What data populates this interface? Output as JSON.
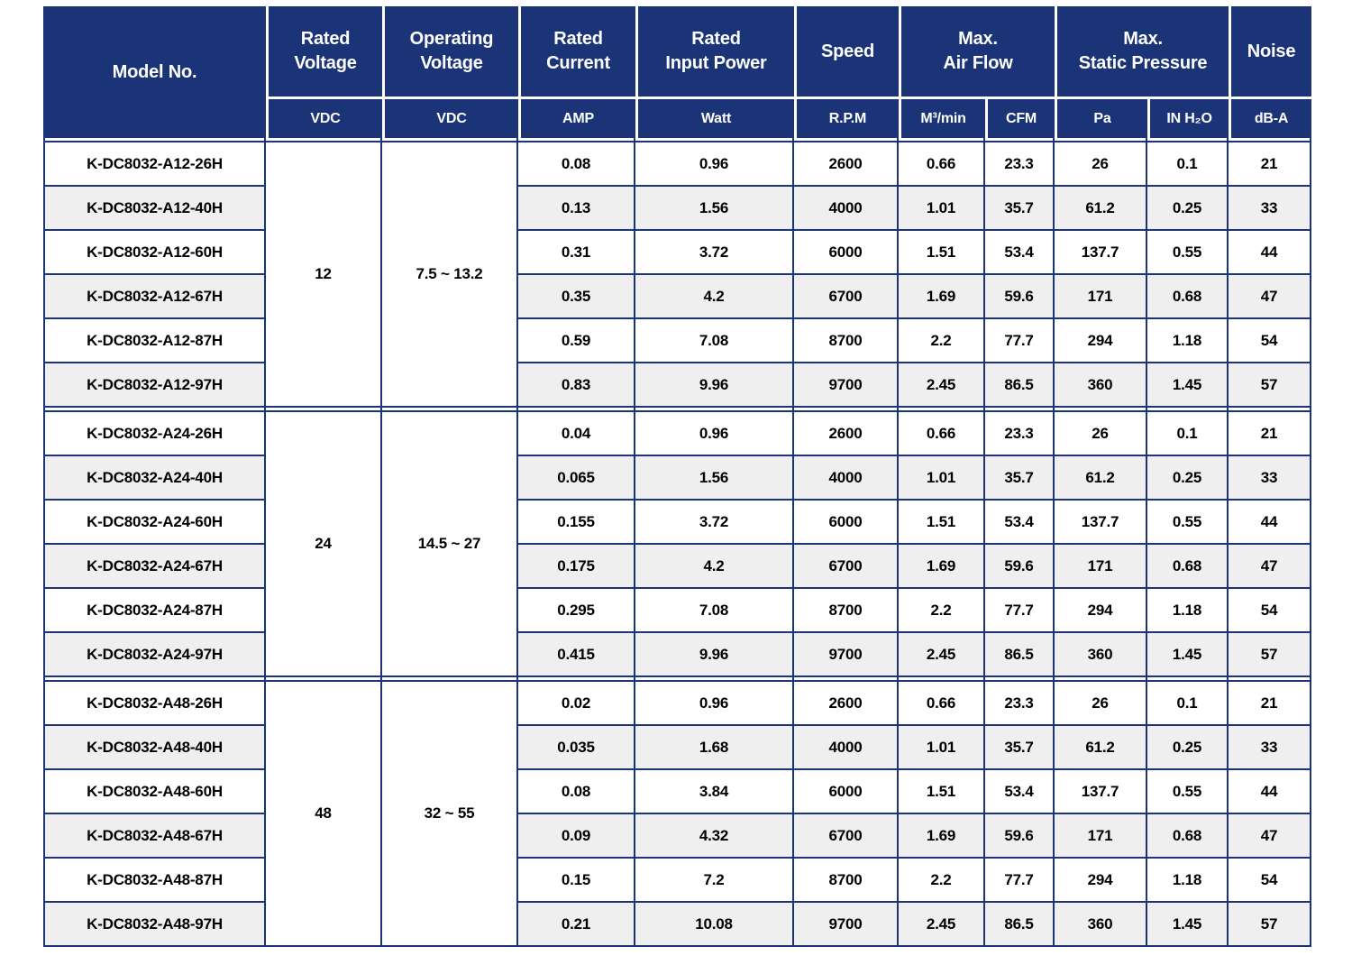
{
  "colors": {
    "header_bg": "#1B3478",
    "border": "#1B3478",
    "stripe": "#EFEFEF",
    "header_text": "#FFFFFF",
    "body_text": "#000000"
  },
  "header": {
    "model_label": "Model No.",
    "rated_voltage": {
      "l1": "Rated",
      "l2": "Voltage",
      "unit": "VDC"
    },
    "operating_voltage": {
      "l1": "Operating",
      "l2": "Voltage",
      "unit": "VDC"
    },
    "rated_current": {
      "l1": "Rated",
      "l2": "Current",
      "unit": "AMP"
    },
    "rated_input_power": {
      "l1": "Rated",
      "l2": "Input Power",
      "unit": "Watt"
    },
    "speed": {
      "l1": "Speed",
      "l2": "",
      "unit": "R.P.M"
    },
    "max_air_flow": {
      "l1": "Max.",
      "l2": "Air Flow",
      "unit1": "M³/min",
      "unit2": "CFM"
    },
    "max_static_pressure": {
      "l1": "Max.",
      "l2": "Static Pressure",
      "unit1": "Pa",
      "unit2": "IN H₂O"
    },
    "noise": {
      "l1": "Noise",
      "l2": "",
      "unit": "dB-A"
    }
  },
  "groups": [
    {
      "rated_voltage": "12",
      "operating_voltage": "7.5 ~ 13.2",
      "rows": [
        {
          "model": "K-DC8032-A12-26H",
          "current": "0.08",
          "power": "0.96",
          "speed": "2600",
          "airflow_m3min": "0.66",
          "airflow_cfm": "23.3",
          "pressure_pa": "26",
          "pressure_inh2o": "0.1",
          "noise": "21"
        },
        {
          "model": "K-DC8032-A12-40H",
          "current": "0.13",
          "power": "1.56",
          "speed": "4000",
          "airflow_m3min": "1.01",
          "airflow_cfm": "35.7",
          "pressure_pa": "61.2",
          "pressure_inh2o": "0.25",
          "noise": "33"
        },
        {
          "model": "K-DC8032-A12-60H",
          "current": "0.31",
          "power": "3.72",
          "speed": "6000",
          "airflow_m3min": "1.51",
          "airflow_cfm": "53.4",
          "pressure_pa": "137.7",
          "pressure_inh2o": "0.55",
          "noise": "44"
        },
        {
          "model": "K-DC8032-A12-67H",
          "current": "0.35",
          "power": "4.2",
          "speed": "6700",
          "airflow_m3min": "1.69",
          "airflow_cfm": "59.6",
          "pressure_pa": "171",
          "pressure_inh2o": "0.68",
          "noise": "47"
        },
        {
          "model": "K-DC8032-A12-87H",
          "current": "0.59",
          "power": "7.08",
          "speed": "8700",
          "airflow_m3min": "2.2",
          "airflow_cfm": "77.7",
          "pressure_pa": "294",
          "pressure_inh2o": "1.18",
          "noise": "54"
        },
        {
          "model": "K-DC8032-A12-97H",
          "current": "0.83",
          "power": "9.96",
          "speed": "9700",
          "airflow_m3min": "2.45",
          "airflow_cfm": "86.5",
          "pressure_pa": "360",
          "pressure_inh2o": "1.45",
          "noise": "57"
        }
      ]
    },
    {
      "rated_voltage": "24",
      "operating_voltage": "14.5 ~ 27",
      "rows": [
        {
          "model": "K-DC8032-A24-26H",
          "current": "0.04",
          "power": "0.96",
          "speed": "2600",
          "airflow_m3min": "0.66",
          "airflow_cfm": "23.3",
          "pressure_pa": "26",
          "pressure_inh2o": "0.1",
          "noise": "21"
        },
        {
          "model": "K-DC8032-A24-40H",
          "current": "0.065",
          "power": "1.56",
          "speed": "4000",
          "airflow_m3min": "1.01",
          "airflow_cfm": "35.7",
          "pressure_pa": "61.2",
          "pressure_inh2o": "0.25",
          "noise": "33"
        },
        {
          "model": "K-DC8032-A24-60H",
          "current": "0.155",
          "power": "3.72",
          "speed": "6000",
          "airflow_m3min": "1.51",
          "airflow_cfm": "53.4",
          "pressure_pa": "137.7",
          "pressure_inh2o": "0.55",
          "noise": "44"
        },
        {
          "model": "K-DC8032-A24-67H",
          "current": "0.175",
          "power": "4.2",
          "speed": "6700",
          "airflow_m3min": "1.69",
          "airflow_cfm": "59.6",
          "pressure_pa": "171",
          "pressure_inh2o": "0.68",
          "noise": "47"
        },
        {
          "model": "K-DC8032-A24-87H",
          "current": "0.295",
          "power": "7.08",
          "speed": "8700",
          "airflow_m3min": "2.2",
          "airflow_cfm": "77.7",
          "pressure_pa": "294",
          "pressure_inh2o": "1.18",
          "noise": "54"
        },
        {
          "model": "K-DC8032-A24-97H",
          "current": "0.415",
          "power": "9.96",
          "speed": "9700",
          "airflow_m3min": "2.45",
          "airflow_cfm": "86.5",
          "pressure_pa": "360",
          "pressure_inh2o": "1.45",
          "noise": "57"
        }
      ]
    },
    {
      "rated_voltage": "48",
      "operating_voltage": "32 ~ 55",
      "rows": [
        {
          "model": "K-DC8032-A48-26H",
          "current": "0.02",
          "power": "0.96",
          "speed": "2600",
          "airflow_m3min": "0.66",
          "airflow_cfm": "23.3",
          "pressure_pa": "26",
          "pressure_inh2o": "0.1",
          "noise": "21"
        },
        {
          "model": "K-DC8032-A48-40H",
          "current": "0.035",
          "power": "1.68",
          "speed": "4000",
          "airflow_m3min": "1.01",
          "airflow_cfm": "35.7",
          "pressure_pa": "61.2",
          "pressure_inh2o": "0.25",
          "noise": "33"
        },
        {
          "model": "K-DC8032-A48-60H",
          "current": "0.08",
          "power": "3.84",
          "speed": "6000",
          "airflow_m3min": "1.51",
          "airflow_cfm": "53.4",
          "pressure_pa": "137.7",
          "pressure_inh2o": "0.55",
          "noise": "44"
        },
        {
          "model": "K-DC8032-A48-67H",
          "current": "0.09",
          "power": "4.32",
          "speed": "6700",
          "airflow_m3min": "1.69",
          "airflow_cfm": "59.6",
          "pressure_pa": "171",
          "pressure_inh2o": "0.68",
          "noise": "47"
        },
        {
          "model": "K-DC8032-A48-87H",
          "current": "0.15",
          "power": "7.2",
          "speed": "8700",
          "airflow_m3min": "2.2",
          "airflow_cfm": "77.7",
          "pressure_pa": "294",
          "pressure_inh2o": "1.18",
          "noise": "54"
        },
        {
          "model": "K-DC8032-A48-97H",
          "current": "0.21",
          "power": "10.08",
          "speed": "9700",
          "airflow_m3min": "2.45",
          "airflow_cfm": "86.5",
          "pressure_pa": "360",
          "pressure_inh2o": "1.45",
          "noise": "57"
        }
      ]
    }
  ]
}
